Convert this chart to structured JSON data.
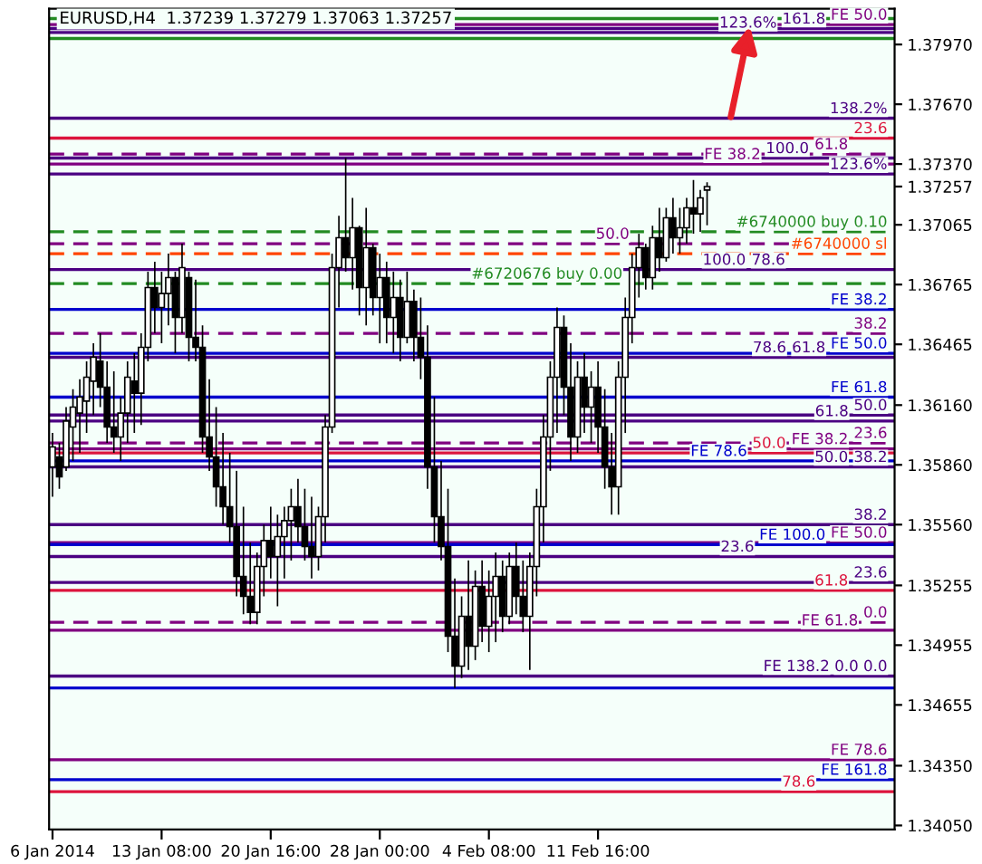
{
  "chart_data": {
    "type": "candlestick",
    "title": "EURUSD,H4  1.37239 1.37279 1.37063 1.37257",
    "categories": [
      "6 Jan 2014",
      null,
      null,
      null,
      null,
      null,
      null,
      null,
      null,
      null,
      null,
      null,
      null,
      null,
      null,
      null,
      "13 Jan 08:00",
      null,
      null,
      null,
      null,
      null,
      null,
      null,
      null,
      null,
      null,
      null,
      null,
      null,
      null,
      null,
      "20 Jan 16:00",
      null,
      null,
      null,
      null,
      null,
      null,
      null,
      null,
      null,
      null,
      null,
      null,
      null,
      null,
      null,
      "28 Jan 00:00",
      null,
      null,
      null,
      null,
      null,
      null,
      null,
      null,
      null,
      null,
      null,
      null,
      null,
      null,
      null,
      "4 Feb 08:00",
      null,
      null,
      null,
      null,
      null,
      null,
      null,
      null,
      null,
      null,
      null,
      null,
      null,
      null,
      null,
      "11 Feb 16:00",
      null,
      null,
      null,
      null,
      null,
      null,
      null,
      null,
      null,
      null,
      null,
      null,
      null,
      null,
      null,
      null,
      null,
      null,
      null,
      null,
      null,
      null,
      null,
      null,
      null,
      null,
      null,
      null,
      null,
      null,
      null,
      null,
      null,
      null,
      null,
      null,
      null,
      null,
      null,
      null,
      null,
      null,
      null
    ],
    "ohlc": [
      [
        1.3585,
        1.3602,
        1.357,
        1.3595
      ],
      [
        1.359,
        1.3597,
        1.3574,
        1.358
      ],
      [
        1.3585,
        1.3615,
        1.3583,
        1.3608
      ],
      [
        1.3605,
        1.3624,
        1.3588,
        1.3615
      ],
      [
        1.3612,
        1.3629,
        1.3592,
        1.362
      ],
      [
        1.3618,
        1.3638,
        1.3602,
        1.363
      ],
      [
        1.3628,
        1.3647,
        1.3611,
        1.364
      ],
      [
        1.3638,
        1.3652,
        1.3615,
        1.3625
      ],
      [
        1.3625,
        1.3638,
        1.3597,
        1.3605
      ],
      [
        1.3605,
        1.3633,
        1.3592,
        1.36
      ],
      [
        1.36,
        1.362,
        1.3588,
        1.3612
      ],
      [
        1.3612,
        1.3638,
        1.3597,
        1.363
      ],
      [
        1.3628,
        1.3642,
        1.3602,
        1.3622
      ],
      [
        1.3622,
        1.3652,
        1.3606,
        1.3645
      ],
      [
        1.3645,
        1.3683,
        1.3638,
        1.3675
      ],
      [
        1.3675,
        1.3688,
        1.3652,
        1.3665
      ],
      [
        1.3665,
        1.3683,
        1.3647,
        1.3672
      ],
      [
        1.3672,
        1.3692,
        1.3656,
        1.368
      ],
      [
        1.368,
        1.3683,
        1.3642,
        1.366
      ],
      [
        1.366,
        1.3697,
        1.3652,
        1.3685
      ],
      [
        1.368,
        1.3683,
        1.3638,
        1.365
      ],
      [
        1.365,
        1.3679,
        1.3638,
        1.3645
      ],
      [
        1.3645,
        1.3656,
        1.3592,
        1.36
      ],
      [
        1.36,
        1.3629,
        1.3583,
        1.359
      ],
      [
        1.359,
        1.3615,
        1.3565,
        1.3575
      ],
      [
        1.3575,
        1.3602,
        1.3556,
        1.3565
      ],
      [
        1.3565,
        1.3592,
        1.3547,
        1.3555
      ],
      [
        1.3555,
        1.3583,
        1.352,
        1.353
      ],
      [
        1.353,
        1.3565,
        1.3511,
        1.352
      ],
      [
        1.352,
        1.3547,
        1.3506,
        1.3512
      ],
      [
        1.3512,
        1.3542,
        1.3506,
        1.3535
      ],
      [
        1.3535,
        1.3556,
        1.352,
        1.3548
      ],
      [
        1.3548,
        1.3565,
        1.3529,
        1.354
      ],
      [
        1.354,
        1.3561,
        1.3515,
        1.355
      ],
      [
        1.355,
        1.3565,
        1.3529,
        1.3558
      ],
      [
        1.3558,
        1.3574,
        1.3538,
        1.3565
      ],
      [
        1.3565,
        1.3579,
        1.3547,
        1.3555
      ],
      [
        1.3555,
        1.3574,
        1.3538,
        1.3545
      ],
      [
        1.3545,
        1.357,
        1.3529,
        1.354
      ],
      [
        1.354,
        1.3565,
        1.3533,
        1.356
      ],
      [
        1.356,
        1.3611,
        1.3547,
        1.3605
      ],
      [
        1.3605,
        1.3692,
        1.3602,
        1.3685
      ],
      [
        1.3685,
        1.3711,
        1.3665,
        1.37
      ],
      [
        1.37,
        1.374,
        1.3683,
        1.369
      ],
      [
        1.369,
        1.372,
        1.3674,
        1.3705
      ],
      [
        1.3705,
        1.3706,
        1.3661,
        1.3675
      ],
      [
        1.3675,
        1.3715,
        1.3656,
        1.3695
      ],
      [
        1.3695,
        1.3697,
        1.3661,
        1.367
      ],
      [
        1.367,
        1.3692,
        1.3647,
        1.368
      ],
      [
        1.368,
        1.3688,
        1.3647,
        1.366
      ],
      [
        1.366,
        1.3683,
        1.3642,
        1.367
      ],
      [
        1.367,
        1.3679,
        1.3638,
        1.365
      ],
      [
        1.365,
        1.3683,
        1.3647,
        1.3668
      ],
      [
        1.3668,
        1.3674,
        1.3638,
        1.365
      ],
      [
        1.365,
        1.367,
        1.3629,
        1.364
      ],
      [
        1.364,
        1.3656,
        1.3574,
        1.3585
      ],
      [
        1.3585,
        1.362,
        1.3547,
        1.356
      ],
      [
        1.356,
        1.3588,
        1.3538,
        1.3545
      ],
      [
        1.3545,
        1.3574,
        1.3492,
        1.35
      ],
      [
        1.35,
        1.3529,
        1.3474,
        1.3485
      ],
      [
        1.3485,
        1.352,
        1.3479,
        1.351
      ],
      [
        1.351,
        1.3538,
        1.3483,
        1.3495
      ],
      [
        1.3495,
        1.3533,
        1.3488,
        1.3525
      ],
      [
        1.3525,
        1.3538,
        1.3497,
        1.3505
      ],
      [
        1.3505,
        1.3533,
        1.3492,
        1.352
      ],
      [
        1.352,
        1.3542,
        1.3497,
        1.353
      ],
      [
        1.353,
        1.3538,
        1.3502,
        1.351
      ],
      [
        1.351,
        1.3542,
        1.3506,
        1.3535
      ],
      [
        1.3535,
        1.3547,
        1.3511,
        1.352
      ],
      [
        1.352,
        1.3538,
        1.3502,
        1.351
      ],
      [
        1.351,
        1.3542,
        1.3483,
        1.3535
      ],
      [
        1.3535,
        1.3574,
        1.352,
        1.3565
      ],
      [
        1.3565,
        1.3611,
        1.3547,
        1.36
      ],
      [
        1.36,
        1.3638,
        1.3583,
        1.363
      ],
      [
        1.363,
        1.3665,
        1.3602,
        1.3655
      ],
      [
        1.3655,
        1.3661,
        1.3611,
        1.3625
      ],
      [
        1.3625,
        1.3647,
        1.3588,
        1.36
      ],
      [
        1.36,
        1.3638,
        1.3592,
        1.363
      ],
      [
        1.363,
        1.3642,
        1.3602,
        1.3615
      ],
      [
        1.3615,
        1.3633,
        1.3597,
        1.3625
      ],
      [
        1.3625,
        1.3638,
        1.3592,
        1.3605
      ],
      [
        1.3605,
        1.3624,
        1.3574,
        1.3585
      ],
      [
        1.3585,
        1.3602,
        1.3561,
        1.3575
      ],
      [
        1.3575,
        1.3638,
        1.3561,
        1.363
      ],
      [
        1.363,
        1.367,
        1.3602,
        1.366
      ],
      [
        1.366,
        1.3692,
        1.3647,
        1.3685
      ],
      [
        1.3685,
        1.3702,
        1.367,
        1.3695
      ],
      [
        1.3695,
        1.3697,
        1.3674,
        1.368
      ],
      [
        1.368,
        1.3706,
        1.3674,
        1.37
      ],
      [
        1.37,
        1.3715,
        1.3683,
        1.369
      ],
      [
        1.369,
        1.3715,
        1.3688,
        1.371
      ],
      [
        1.371,
        1.372,
        1.3692,
        1.37
      ],
      [
        1.37,
        1.3715,
        1.3692,
        1.3705
      ],
      [
        1.3705,
        1.372,
        1.3697,
        1.3715
      ],
      [
        1.3715,
        1.3729,
        1.3702,
        1.3712
      ],
      [
        1.3712,
        1.3724,
        1.3703,
        1.372
      ],
      [
        1.37239,
        1.37279,
        1.37063,
        1.37257
      ],
      null,
      null,
      null,
      null,
      null,
      null,
      null,
      null,
      null,
      null,
      null,
      null,
      null,
      null,
      null,
      null,
      null,
      null,
      null,
      null,
      null,
      null,
      null,
      null,
      null,
      null,
      null
    ],
    "ylim": [
      1.3403,
      1.3815
    ],
    "yticks": [
      {
        "value": 1.3405,
        "label": "1.34050"
      },
      {
        "value": 1.3435,
        "label": "1.34350"
      },
      {
        "value": 1.34655,
        "label": "1.34655"
      },
      {
        "value": 1.34955,
        "label": "1.34955"
      },
      {
        "value": 1.35255,
        "label": "1.35255"
      },
      {
        "value": 1.3556,
        "label": "1.35560"
      },
      {
        "value": 1.3586,
        "label": "1.35860"
      },
      {
        "value": 1.3616,
        "label": "1.36160"
      },
      {
        "value": 1.36465,
        "label": "1.36465"
      },
      {
        "value": 1.36765,
        "label": "1.36765"
      },
      {
        "value": 1.37065,
        "label": "1.37065"
      },
      {
        "value": 1.37257,
        "label": "1.37257"
      },
      {
        "value": 1.3737,
        "label": "1.37370"
      },
      {
        "value": 1.3767,
        "label": "1.37670"
      },
      {
        "value": 1.3797,
        "label": "1.37970"
      }
    ],
    "annotations": [
      {
        "text": "FE 50.0",
        "y": 1.3807
      },
      {
        "text": "161.8",
        "y": 1.3805
      },
      {
        "text": "123.6%",
        "y": 1.3803
      },
      {
        "text": "138.2%",
        "y": 1.376
      },
      {
        "text": "23.6",
        "y": 1.375
      },
      {
        "text": "61.8",
        "y": 1.3742
      },
      {
        "text": "100.0",
        "y": 1.374
      },
      {
        "text": "FE 38.2",
        "y": 1.3737
      },
      {
        "text": "123.6%",
        "y": 1.3732
      },
      {
        "text": "#6740000 buy 0.10",
        "y": 1.3703
      },
      {
        "text": "50.0",
        "y": 1.3697
      },
      {
        "text": "#6740000 sl",
        "y": 1.3692
      },
      {
        "text": "78.6",
        "y": 1.3684
      },
      {
        "text": "100.0",
        "y": 1.3684
      },
      {
        "text": "#6720676 buy 0.00",
        "y": 1.3677
      },
      {
        "text": "FE 38.2",
        "y": 1.3664
      },
      {
        "text": "38.2",
        "y": 1.3652
      },
      {
        "text": "FE 50.0",
        "y": 1.3642
      },
      {
        "text": "61.8",
        "y": 1.364
      },
      {
        "text": "78.6",
        "y": 1.364
      },
      {
        "text": "FE 61.8",
        "y": 1.362
      },
      {
        "text": "50.0",
        "y": 1.3611
      },
      {
        "text": "61.8",
        "y": 1.3608
      },
      {
        "text": "23.6",
        "y": 1.3597
      },
      {
        "text": "FE 38.2",
        "y": 1.3594
      },
      {
        "text": "50.0",
        "y": 1.3592
      },
      {
        "text": "FE 78.6",
        "y": 1.3588
      },
      {
        "text": "38.2",
        "y": 1.3585
      },
      {
        "text": "50.0",
        "y": 1.3585
      },
      {
        "text": "38.2",
        "y": 1.3556
      },
      {
        "text": "FE 50.0",
        "y": 1.3547
      },
      {
        "text": "FE 100.0",
        "y": 1.3546
      },
      {
        "text": "23.6",
        "y": 1.354
      },
      {
        "text": "23.6",
        "y": 1.3527
      },
      {
        "text": "61.8",
        "y": 1.3523
      },
      {
        "text": "0.0",
        "y": 1.3507
      },
      {
        "text": "FE 61.8",
        "y": 1.3503
      },
      {
        "text": "0.0 0.0",
        "y": 1.348
      },
      {
        "text": "FE 138.2",
        "y": 1.348
      },
      {
        "text": "FE 78.6",
        "y": 1.3438
      },
      {
        "text": "FE 161.8",
        "y": 1.3428
      },
      {
        "text": "78.6",
        "y": 1.3422
      }
    ],
    "ref_lines": [
      {
        "axis": "y",
        "value": 1.381,
        "color": "#228b22",
        "line_style": "solid"
      },
      {
        "axis": "y",
        "value": 1.38,
        "color": "#228b22",
        "line_style": "solid"
      },
      {
        "axis": "y",
        "value": 1.3807,
        "color": "#800080",
        "line_style": "solid"
      },
      {
        "axis": "y",
        "value": 1.3805,
        "color": "#4b0082",
        "line_style": "solid"
      },
      {
        "axis": "y",
        "value": 1.3803,
        "color": "#4b0082",
        "line_style": "solid"
      },
      {
        "axis": "y",
        "value": 1.376,
        "color": "#4b0082",
        "line_style": "solid"
      },
      {
        "axis": "y",
        "value": 1.375,
        "color": "#dc143c",
        "line_style": "solid"
      },
      {
        "axis": "y",
        "value": 1.3742,
        "color": "#800080",
        "line_style": "dashed"
      },
      {
        "axis": "y",
        "value": 1.374,
        "color": "#4b0082",
        "line_style": "solid"
      },
      {
        "axis": "y",
        "value": 1.3737,
        "color": "#800080",
        "line_style": "solid"
      },
      {
        "axis": "y",
        "value": 1.3732,
        "color": "#4b0082",
        "line_style": "solid"
      },
      {
        "axis": "y",
        "value": 1.3703,
        "color": "#228b22",
        "line_style": "dashed"
      },
      {
        "axis": "y",
        "value": 1.3697,
        "color": "#800080",
        "line_style": "dashed"
      },
      {
        "axis": "y",
        "value": 1.3692,
        "color": "#ff4500",
        "line_style": "dashed"
      },
      {
        "axis": "y",
        "value": 1.3684,
        "color": "#4b0082",
        "line_style": "solid"
      },
      {
        "axis": "y",
        "value": 1.3677,
        "color": "#228b22",
        "line_style": "dashed"
      },
      {
        "axis": "y",
        "value": 1.3664,
        "color": "#0000cd",
        "line_style": "solid"
      },
      {
        "axis": "y",
        "value": 1.3652,
        "color": "#800080",
        "line_style": "dashed"
      },
      {
        "axis": "y",
        "value": 1.3642,
        "color": "#0000cd",
        "line_style": "solid"
      },
      {
        "axis": "y",
        "value": 1.364,
        "color": "#4b0082",
        "line_style": "solid"
      },
      {
        "axis": "y",
        "value": 1.362,
        "color": "#0000cd",
        "line_style": "solid"
      },
      {
        "axis": "y",
        "value": 1.3611,
        "color": "#4b0082",
        "line_style": "solid"
      },
      {
        "axis": "y",
        "value": 1.3608,
        "color": "#4b0082",
        "line_style": "solid"
      },
      {
        "axis": "y",
        "value": 1.3597,
        "color": "#800080",
        "line_style": "dashed"
      },
      {
        "axis": "y",
        "value": 1.3594,
        "color": "#800080",
        "line_style": "solid"
      },
      {
        "axis": "y",
        "value": 1.3592,
        "color": "#dc143c",
        "line_style": "solid"
      },
      {
        "axis": "y",
        "value": 1.3588,
        "color": "#0000cd",
        "line_style": "solid"
      },
      {
        "axis": "y",
        "value": 1.3585,
        "color": "#4b0082",
        "line_style": "solid"
      },
      {
        "axis": "y",
        "value": 1.3556,
        "color": "#4b0082",
        "line_style": "solid"
      },
      {
        "axis": "y",
        "value": 1.3547,
        "color": "#800080",
        "line_style": "solid"
      },
      {
        "axis": "y",
        "value": 1.3546,
        "color": "#0000cd",
        "line_style": "solid"
      },
      {
        "axis": "y",
        "value": 1.354,
        "color": "#4b0082",
        "line_style": "solid"
      },
      {
        "axis": "y",
        "value": 1.3527,
        "color": "#4b0082",
        "line_style": "solid"
      },
      {
        "axis": "y",
        "value": 1.3523,
        "color": "#dc143c",
        "line_style": "solid"
      },
      {
        "axis": "y",
        "value": 1.3507,
        "color": "#800080",
        "line_style": "dashed"
      },
      {
        "axis": "y",
        "value": 1.3503,
        "color": "#800080",
        "line_style": "solid"
      },
      {
        "axis": "y",
        "value": 1.348,
        "color": "#4b0082",
        "line_style": "solid"
      },
      {
        "axis": "y",
        "value": 1.3474,
        "color": "#0000cd",
        "line_style": "solid"
      },
      {
        "axis": "y",
        "value": 1.3438,
        "color": "#800080",
        "line_style": "solid"
      },
      {
        "axis": "y",
        "value": 1.3428,
        "color": "#0000cd",
        "line_style": "solid"
      },
      {
        "axis": "y",
        "value": 1.3422,
        "color": "#dc143c",
        "line_style": "solid"
      }
    ],
    "grid": false
  }
}
